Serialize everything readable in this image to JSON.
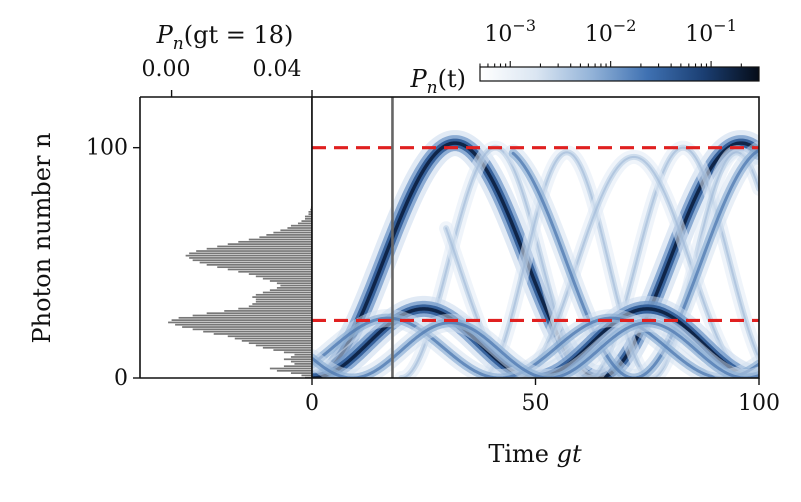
{
  "chart_data": [
    {
      "type": "bar",
      "orientation": "horizontal",
      "title": "P_n(gt = 18)",
      "title_parts": {
        "main": "P",
        "sub": "n",
        "args": "(gt = 18)"
      },
      "xlabel_top_ticks": [
        "0.00",
        "0.04"
      ],
      "x_tick_values": [
        0.0,
        0.04
      ],
      "xlim": [
        0.0,
        0.049
      ],
      "x_direction": "reversed",
      "ylabel": "Photon number n",
      "ylim": [
        0,
        122
      ],
      "y_ticks": [
        0,
        100
      ],
      "y_tick_labels": [
        "0",
        "100"
      ],
      "bar_color": "#777777",
      "note": "",
      "n": [
        0,
        1,
        2,
        3,
        4,
        5,
        6,
        7,
        8,
        9,
        10,
        11,
        12,
        13,
        14,
        15,
        16,
        17,
        18,
        19,
        20,
        21,
        22,
        23,
        24,
        25,
        26,
        27,
        28,
        29,
        30,
        31,
        32,
        33,
        34,
        35,
        36,
        37,
        38,
        39,
        40,
        41,
        42,
        43,
        44,
        45,
        46,
        47,
        48,
        49,
        50,
        51,
        52,
        53,
        54,
        55,
        56,
        57,
        58,
        59,
        60,
        61,
        62,
        63,
        64,
        65,
        66,
        67,
        68,
        69,
        70,
        71,
        72,
        73,
        74,
        75
      ],
      "values": [
        0.002,
        0.003,
        0.006,
        0.01,
        0.012,
        0.008,
        0.005,
        0.006,
        0.008,
        0.006,
        0.005,
        0.008,
        0.011,
        0.014,
        0.016,
        0.018,
        0.02,
        0.022,
        0.024,
        0.028,
        0.031,
        0.034,
        0.037,
        0.039,
        0.041,
        0.04,
        0.038,
        0.034,
        0.03,
        0.025,
        0.021,
        0.018,
        0.017,
        0.016,
        0.016,
        0.017,
        0.016,
        0.014,
        0.012,
        0.01,
        0.009,
        0.01,
        0.012,
        0.014,
        0.016,
        0.018,
        0.021,
        0.024,
        0.027,
        0.03,
        0.032,
        0.034,
        0.035,
        0.036,
        0.035,
        0.033,
        0.03,
        0.027,
        0.024,
        0.021,
        0.018,
        0.015,
        0.013,
        0.011,
        0.009,
        0.007,
        0.006,
        0.004,
        0.003,
        0.002,
        0.002,
        0.001,
        0.001,
        0.0005,
        0.0003,
        0.0001
      ]
    },
    {
      "type": "heatmap",
      "xlabel": "Time gt",
      "xlabel_parts": {
        "text": "Time ",
        "math": "gt"
      },
      "xlim": [
        0,
        100
      ],
      "x_ticks": [
        0,
        50,
        100
      ],
      "x_tick_labels": [
        "0",
        "50",
        "100"
      ],
      "ylim": [
        0,
        122
      ],
      "colorbar": {
        "label": "P_n(t)",
        "label_parts": {
          "main": "P",
          "sub": "n",
          "args": "(t)"
        },
        "scale": "log",
        "range": [
          0.0005,
          0.3
        ],
        "tick_labels": [
          {
            "base": "10",
            "exp": "−3",
            "value": 0.001
          },
          {
            "base": "10",
            "exp": "−2",
            "value": 0.01
          },
          {
            "base": "10",
            "exp": "−1",
            "value": 0.1
          }
        ],
        "colors": [
          "#ffffff",
          "#dbe6f2",
          "#93b3d8",
          "#3f71b2",
          "#1b3f73",
          "#050c18"
        ]
      },
      "annotations": [
        {
          "type": "hline",
          "y": 100,
          "color": "#e02020",
          "style": "dashed"
        },
        {
          "type": "hline",
          "y": 25,
          "color": "#e02020",
          "style": "dashed"
        },
        {
          "type": "vline",
          "x": 18,
          "color": "#666666",
          "style": "solid"
        }
      ],
      "description": "Bright trajectories: photon number oscillating between about n=0 and n=100 (period ~64 in gt) plus a low-lying trajectory oscillating between 0 and ~30, with fainter replica branches."
    }
  ]
}
